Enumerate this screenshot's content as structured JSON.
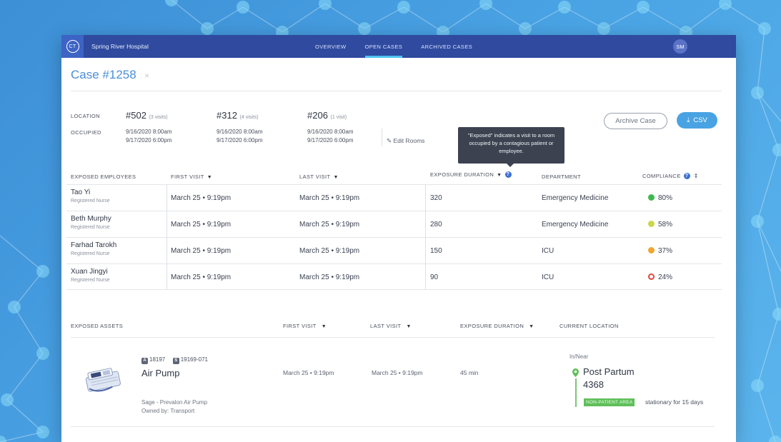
{
  "app": {
    "logo_initials": "CT",
    "hospital": "Spring River Hospital",
    "nav": [
      {
        "label": "OVERVIEW",
        "active": false
      },
      {
        "label": "OPEN CASES",
        "active": true
      },
      {
        "label": "ARCHIVED CASES",
        "active": false
      }
    ],
    "user_initials": "SM"
  },
  "case": {
    "title": "Case #1258",
    "close_glyph": "×"
  },
  "rooms": {
    "location_label": "LOCATION",
    "occupied_label": "OCCUPIED",
    "items": [
      {
        "number": "#502",
        "visits": "(3 visits)",
        "start": "9/16/2020 8:00am",
        "end": "9/17/2020 6:00pm"
      },
      {
        "number": "#312",
        "visits": "(4 visits)",
        "start": "9/16/2020 8:00am",
        "end": "9/17/2020 6:00pm"
      },
      {
        "number": "#206",
        "visits": "(1 visit)",
        "start": "9/16/2020 8:00am",
        "end": "9/17/2020 6:00pm"
      }
    ],
    "edit_label": "Edit Rooms"
  },
  "actions": {
    "archive_label": "Archive Case",
    "csv_label": "CSV"
  },
  "tooltip": {
    "text": "\"Exposed\" indicates a visit to a room occupied by a contagious patient or employee."
  },
  "employees": {
    "headers": {
      "name": "EXPOSED EMPLOYEES",
      "first_visit": "FIRST VISIT",
      "last_visit": "LAST VISIT",
      "duration": "EXPOSURE DURATION",
      "department": "DEPARTMENT",
      "compliance": "COMPLIANCE"
    },
    "rows": [
      {
        "name": "Tao Yi",
        "role": "Registered Nurse",
        "first": "March 25  •  9:19pm",
        "last": "March 25  •  9:19pm",
        "duration": "320",
        "department": "Emergency Medicine",
        "compliance": "80%",
        "compliance_color": "#3fb950",
        "compliance_style": "filled"
      },
      {
        "name": "Beth Murphy",
        "role": "Registered Nurse",
        "first": "March 25  •  9:19pm",
        "last": "March 25  •  9:19pm",
        "duration": "280",
        "department": "Emergency Medicine",
        "compliance": "58%",
        "compliance_color": "#c9d84a",
        "compliance_style": "filled"
      },
      {
        "name": "Farhad Tarokh",
        "role": "Registered Nurse",
        "first": "March 25  •  9:19pm",
        "last": "March 25  •  9:19pm",
        "duration": "150",
        "department": "ICU",
        "compliance": "37%",
        "compliance_color": "#f0a531",
        "compliance_style": "filled"
      },
      {
        "name": "Xuan Jingyi",
        "role": "Registered Nurse",
        "first": "March 25  •  9:19pm",
        "last": "March 25  •  9:19pm",
        "duration": "90",
        "department": "ICU",
        "compliance": "24%",
        "compliance_color": "#e5453a",
        "compliance_style": "ring"
      }
    ]
  },
  "assets": {
    "headers": {
      "name": "EXPOSED ASSETS",
      "first_visit": "FIRST VISIT",
      "last_visit": "LAST VISIT",
      "duration": "EXPOSURE DURATION",
      "location": "CURRENT LOCATION"
    },
    "item": {
      "tag_a_letter": "A",
      "tag_a": "18197",
      "tag_s_letter": "S",
      "tag_s": "19169-071",
      "name": "Air Pump",
      "model": "Sage - Prevalon Air Pump",
      "owner": "Owned by: Transport",
      "first": "March 25  •  9:19pm",
      "last": "March 25  •  9:19pm",
      "duration": "45 min",
      "location_prefix": "In/Near",
      "location_name": "Post Partum",
      "location_room": "4368",
      "area_badge": "NON-PATIENT AREA",
      "stationary": "stationary for 15 days"
    }
  },
  "colors": {
    "topbar": "#2f4a9e",
    "accent": "#49a3e3",
    "title": "#4a8fd8",
    "tooltip": "#3c4250"
  }
}
